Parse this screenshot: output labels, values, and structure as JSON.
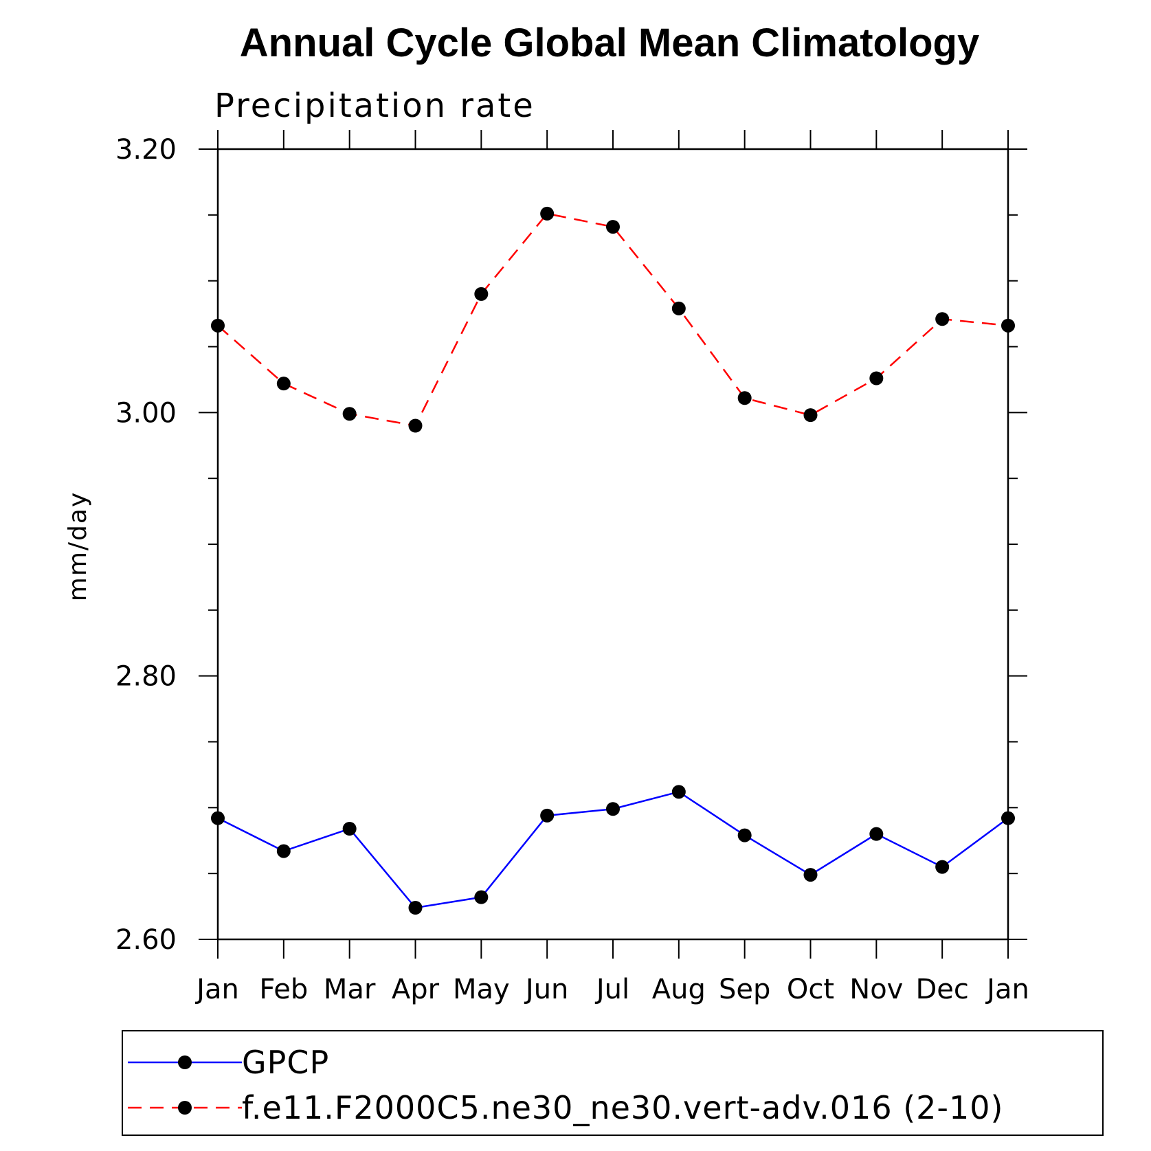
{
  "chart_data": {
    "type": "line",
    "title": "Annual Cycle Global Mean Climatology",
    "subtitle": "Precipitation rate",
    "xlabel": "",
    "ylabel": "mm/day",
    "categories": [
      "Jan",
      "Feb",
      "Mar",
      "Apr",
      "May",
      "Jun",
      "Jul",
      "Aug",
      "Sep",
      "Oct",
      "Nov",
      "Dec",
      "Jan"
    ],
    "ylim": [
      2.6,
      3.2
    ],
    "yticks": [
      "2.60",
      "2.80",
      "3.00",
      "3.20"
    ],
    "grid": false,
    "legend_position": "bottom",
    "series": [
      {
        "name": "GPCP",
        "color": "#0000ff",
        "line_style": "solid",
        "marker": "filled-circle",
        "values": [
          2.692,
          2.667,
          2.684,
          2.624,
          2.632,
          2.694,
          2.699,
          2.712,
          2.679,
          2.649,
          2.68,
          2.655,
          2.692
        ]
      },
      {
        "name": "f.e11.F2000C5.ne30_ne30.vert-adv.016 (2-10)",
        "color": "#ff0000",
        "line_style": "dashed",
        "marker": "filled-circle",
        "values": [
          3.066,
          3.022,
          2.999,
          2.99,
          3.09,
          3.151,
          3.141,
          3.079,
          3.011,
          2.998,
          3.026,
          3.071,
          3.066
        ]
      }
    ]
  }
}
